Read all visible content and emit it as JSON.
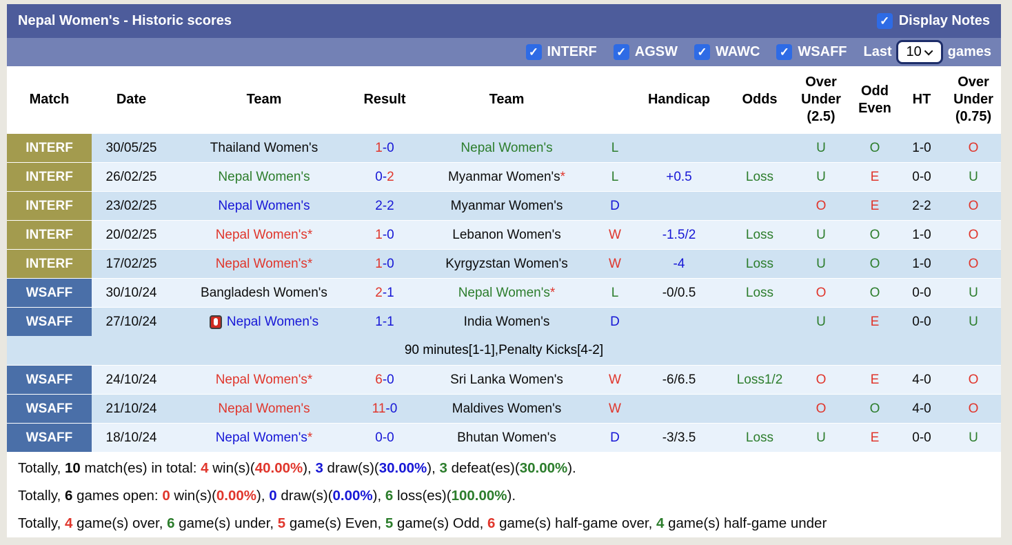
{
  "title_bar": {
    "title": "Nepal Women's - Historic scores",
    "display_notes_label": "Display Notes",
    "display_notes_checked": true
  },
  "filter_bar": {
    "competitions": [
      "INTERF",
      "AGSW",
      "WAWC",
      "WSAFF"
    ],
    "all_checked": true,
    "last_label": "Last",
    "games_count": "10",
    "games_label": "games"
  },
  "table": {
    "headers": [
      "Match",
      "Date",
      "Team",
      "Result",
      "Team",
      "",
      "Handicap",
      "Odds",
      "Over\nUnder\n(2.5)",
      "Odd\nEven",
      "HT",
      "Over\nUnder\n(0.75)"
    ],
    "rows": [
      {
        "type": "match",
        "league": "INTERF",
        "lg": "interf",
        "stripe": "dark",
        "date": "30/05/25",
        "home": {
          "name": "Thailand Women's",
          "color": "black",
          "star": false,
          "icon": false
        },
        "score": {
          "h": "1",
          "hc": "red",
          "a": "0",
          "ac": "blue"
        },
        "away": {
          "name": "Nepal Women's",
          "color": "green",
          "star": false
        },
        "wld": {
          "t": "L",
          "c": "green"
        },
        "handicap": {
          "t": "",
          "c": "blue"
        },
        "odds": {
          "t": "",
          "c": "green"
        },
        "ou25": {
          "t": "U",
          "c": "green"
        },
        "oe": {
          "t": "O",
          "c": "green"
        },
        "ht": "1-0",
        "ou075": {
          "t": "O",
          "c": "red"
        }
      },
      {
        "type": "match",
        "league": "INTERF",
        "lg": "interf",
        "stripe": "light",
        "date": "26/02/25",
        "home": {
          "name": "Nepal Women's",
          "color": "green",
          "star": false,
          "icon": false
        },
        "score": {
          "h": "0",
          "hc": "blue",
          "a": "2",
          "ac": "red"
        },
        "away": {
          "name": "Myanmar Women's",
          "color": "black",
          "star": true
        },
        "wld": {
          "t": "L",
          "c": "green"
        },
        "handicap": {
          "t": "+0.5",
          "c": "blue"
        },
        "odds": {
          "t": "Loss",
          "c": "green"
        },
        "ou25": {
          "t": "U",
          "c": "green"
        },
        "oe": {
          "t": "E",
          "c": "red"
        },
        "ht": "0-0",
        "ou075": {
          "t": "U",
          "c": "green"
        }
      },
      {
        "type": "match",
        "league": "INTERF",
        "lg": "interf",
        "stripe": "dark",
        "date": "23/02/25",
        "home": {
          "name": "Nepal Women's",
          "color": "blue",
          "star": false,
          "icon": false
        },
        "score": {
          "h": "2",
          "hc": "blue",
          "a": "2",
          "ac": "blue"
        },
        "away": {
          "name": "Myanmar Women's",
          "color": "black",
          "star": false
        },
        "wld": {
          "t": "D",
          "c": "blue"
        },
        "handicap": {
          "t": "",
          "c": "blue"
        },
        "odds": {
          "t": "",
          "c": "green"
        },
        "ou25": {
          "t": "O",
          "c": "red"
        },
        "oe": {
          "t": "E",
          "c": "red"
        },
        "ht": "2-2",
        "ou075": {
          "t": "O",
          "c": "red"
        }
      },
      {
        "type": "match",
        "league": "INTERF",
        "lg": "interf",
        "stripe": "light",
        "date": "20/02/25",
        "home": {
          "name": "Nepal Women's",
          "color": "red",
          "star": true,
          "icon": false
        },
        "score": {
          "h": "1",
          "hc": "red",
          "a": "0",
          "ac": "blue"
        },
        "away": {
          "name": "Lebanon Women's",
          "color": "black",
          "star": false
        },
        "wld": {
          "t": "W",
          "c": "red"
        },
        "handicap": {
          "t": "-1.5/2",
          "c": "blue"
        },
        "odds": {
          "t": "Loss",
          "c": "green"
        },
        "ou25": {
          "t": "U",
          "c": "green"
        },
        "oe": {
          "t": "O",
          "c": "green"
        },
        "ht": "1-0",
        "ou075": {
          "t": "O",
          "c": "red"
        }
      },
      {
        "type": "match",
        "league": "INTERF",
        "lg": "interf",
        "stripe": "dark",
        "date": "17/02/25",
        "home": {
          "name": "Nepal Women's",
          "color": "red",
          "star": true,
          "icon": false
        },
        "score": {
          "h": "1",
          "hc": "red",
          "a": "0",
          "ac": "blue"
        },
        "away": {
          "name": "Kyrgyzstan Women's",
          "color": "black",
          "star": false
        },
        "wld": {
          "t": "W",
          "c": "red"
        },
        "handicap": {
          "t": "-4",
          "c": "blue"
        },
        "odds": {
          "t": "Loss",
          "c": "green"
        },
        "ou25": {
          "t": "U",
          "c": "green"
        },
        "oe": {
          "t": "O",
          "c": "green"
        },
        "ht": "1-0",
        "ou075": {
          "t": "O",
          "c": "red"
        }
      },
      {
        "type": "match",
        "league": "WSAFF",
        "lg": "wsaff",
        "stripe": "light",
        "date": "30/10/24",
        "home": {
          "name": "Bangladesh Women's",
          "color": "black",
          "star": false,
          "icon": false
        },
        "score": {
          "h": "2",
          "hc": "red",
          "a": "1",
          "ac": "blue"
        },
        "away": {
          "name": "Nepal Women's",
          "color": "green",
          "star": true
        },
        "wld": {
          "t": "L",
          "c": "green"
        },
        "handicap": {
          "t": "-0/0.5",
          "c": "black"
        },
        "odds": {
          "t": "Loss",
          "c": "green"
        },
        "ou25": {
          "t": "O",
          "c": "red"
        },
        "oe": {
          "t": "O",
          "c": "green"
        },
        "ht": "0-0",
        "ou075": {
          "t": "U",
          "c": "green"
        }
      },
      {
        "type": "match",
        "league": "WSAFF",
        "lg": "wsaff",
        "stripe": "dark",
        "date": "27/10/24",
        "home": {
          "name": "Nepal Women's",
          "color": "blue",
          "star": false,
          "icon": true
        },
        "score": {
          "h": "1",
          "hc": "blue",
          "a": "1",
          "ac": "blue"
        },
        "away": {
          "name": "India Women's",
          "color": "black",
          "star": false
        },
        "wld": {
          "t": "D",
          "c": "blue"
        },
        "handicap": {
          "t": "",
          "c": "black"
        },
        "odds": {
          "t": "",
          "c": "green"
        },
        "ou25": {
          "t": "U",
          "c": "green"
        },
        "oe": {
          "t": "E",
          "c": "red"
        },
        "ht": "0-0",
        "ou075": {
          "t": "U",
          "c": "green"
        }
      },
      {
        "type": "note",
        "stripe": "dark",
        "text": "90 minutes[1-1],Penalty Kicks[4-2]"
      },
      {
        "type": "match",
        "league": "WSAFF",
        "lg": "wsaff",
        "stripe": "light",
        "date": "24/10/24",
        "home": {
          "name": "Nepal Women's",
          "color": "red",
          "star": true,
          "icon": false
        },
        "score": {
          "h": "6",
          "hc": "red",
          "a": "0",
          "ac": "blue"
        },
        "away": {
          "name": "Sri Lanka Women's",
          "color": "black",
          "star": false
        },
        "wld": {
          "t": "W",
          "c": "red"
        },
        "handicap": {
          "t": "-6/6.5",
          "c": "black"
        },
        "odds": {
          "t": "Loss1/2",
          "c": "green"
        },
        "ou25": {
          "t": "O",
          "c": "red"
        },
        "oe": {
          "t": "E",
          "c": "red"
        },
        "ht": "4-0",
        "ou075": {
          "t": "O",
          "c": "red"
        }
      },
      {
        "type": "match",
        "league": "WSAFF",
        "lg": "wsaff",
        "stripe": "dark",
        "date": "21/10/24",
        "home": {
          "name": "Nepal Women's",
          "color": "red",
          "star": false,
          "icon": false
        },
        "score": {
          "h": "11",
          "hc": "red",
          "a": "0",
          "ac": "blue"
        },
        "away": {
          "name": "Maldives Women's",
          "color": "black",
          "star": false
        },
        "wld": {
          "t": "W",
          "c": "red"
        },
        "handicap": {
          "t": "",
          "c": "black"
        },
        "odds": {
          "t": "",
          "c": "green"
        },
        "ou25": {
          "t": "O",
          "c": "red"
        },
        "oe": {
          "t": "O",
          "c": "green"
        },
        "ht": "4-0",
        "ou075": {
          "t": "O",
          "c": "red"
        }
      },
      {
        "type": "match",
        "league": "WSAFF",
        "lg": "wsaff",
        "stripe": "light",
        "date": "18/10/24",
        "home": {
          "name": "Nepal Women's",
          "color": "blue",
          "star": true,
          "icon": false
        },
        "score": {
          "h": "0",
          "hc": "blue",
          "a": "0",
          "ac": "blue"
        },
        "away": {
          "name": "Bhutan Women's",
          "color": "black",
          "star": false
        },
        "wld": {
          "t": "D",
          "c": "blue"
        },
        "handicap": {
          "t": "-3/3.5",
          "c": "black"
        },
        "odds": {
          "t": "Loss",
          "c": "green"
        },
        "ou25": {
          "t": "U",
          "c": "green"
        },
        "oe": {
          "t": "E",
          "c": "red"
        },
        "ht": "0-0",
        "ou075": {
          "t": "U",
          "c": "green"
        }
      }
    ]
  },
  "footer": {
    "lines": [
      [
        {
          "t": "Totally, ",
          "c": "black",
          "b": false
        },
        {
          "t": "10",
          "c": "black",
          "b": true
        },
        {
          "t": " match(es) in total: ",
          "c": "black",
          "b": false
        },
        {
          "t": "4",
          "c": "red",
          "b": true
        },
        {
          "t": " win(s)(",
          "c": "black",
          "b": false
        },
        {
          "t": "40.00%",
          "c": "red",
          "b": true
        },
        {
          "t": "), ",
          "c": "black",
          "b": false
        },
        {
          "t": "3",
          "c": "blue",
          "b": true
        },
        {
          "t": " draw(s)(",
          "c": "black",
          "b": false
        },
        {
          "t": "30.00%",
          "c": "blue",
          "b": true
        },
        {
          "t": "), ",
          "c": "black",
          "b": false
        },
        {
          "t": "3",
          "c": "green",
          "b": true
        },
        {
          "t": " defeat(es)(",
          "c": "black",
          "b": false
        },
        {
          "t": "30.00%",
          "c": "green",
          "b": true
        },
        {
          "t": ").",
          "c": "black",
          "b": false
        }
      ],
      [
        {
          "t": "Totally, ",
          "c": "black",
          "b": false
        },
        {
          "t": "6",
          "c": "black",
          "b": true
        },
        {
          "t": " games open: ",
          "c": "black",
          "b": false
        },
        {
          "t": "0",
          "c": "red",
          "b": true
        },
        {
          "t": " win(s)(",
          "c": "black",
          "b": false
        },
        {
          "t": "0.00%",
          "c": "red",
          "b": true
        },
        {
          "t": "), ",
          "c": "black",
          "b": false
        },
        {
          "t": "0",
          "c": "blue",
          "b": true
        },
        {
          "t": " draw(s)(",
          "c": "black",
          "b": false
        },
        {
          "t": "0.00%",
          "c": "blue",
          "b": true
        },
        {
          "t": "), ",
          "c": "black",
          "b": false
        },
        {
          "t": "6",
          "c": "green",
          "b": true
        },
        {
          "t": " loss(es)(",
          "c": "black",
          "b": false
        },
        {
          "t": "100.00%",
          "c": "green",
          "b": true
        },
        {
          "t": ").",
          "c": "black",
          "b": false
        }
      ],
      [
        {
          "t": "Totally, ",
          "c": "black",
          "b": false
        },
        {
          "t": "4",
          "c": "red",
          "b": true
        },
        {
          "t": " game(s) over, ",
          "c": "black",
          "b": false
        },
        {
          "t": "6",
          "c": "green",
          "b": true
        },
        {
          "t": " game(s) under, ",
          "c": "black",
          "b": false
        },
        {
          "t": "5",
          "c": "red",
          "b": true
        },
        {
          "t": " game(s) Even, ",
          "c": "black",
          "b": false
        },
        {
          "t": "5",
          "c": "green",
          "b": true
        },
        {
          "t": " game(s) Odd, ",
          "c": "black",
          "b": false
        },
        {
          "t": "6",
          "c": "red",
          "b": true
        },
        {
          "t": " game(s) half-game over, ",
          "c": "black",
          "b": false
        },
        {
          "t": "4",
          "c": "green",
          "b": true
        },
        {
          "t": " game(s) half-game under",
          "c": "black",
          "b": false
        }
      ]
    ]
  },
  "colors": {
    "red": "#e0362c",
    "green": "#2c7d2c",
    "blue": "#1717d6",
    "black": "#0c0c0c",
    "title_bar_bg": "#4d5c9b",
    "filter_bar_bg": "#7381b5",
    "league_interf_bg": "#a39b4e",
    "league_wsaff_bg": "#4a6fa8",
    "row_dark": "#cfe2f2",
    "row_light": "#e9f2fb",
    "checkbox_blue": "#2e6be5",
    "page_bg": "#e9e7e0"
  }
}
